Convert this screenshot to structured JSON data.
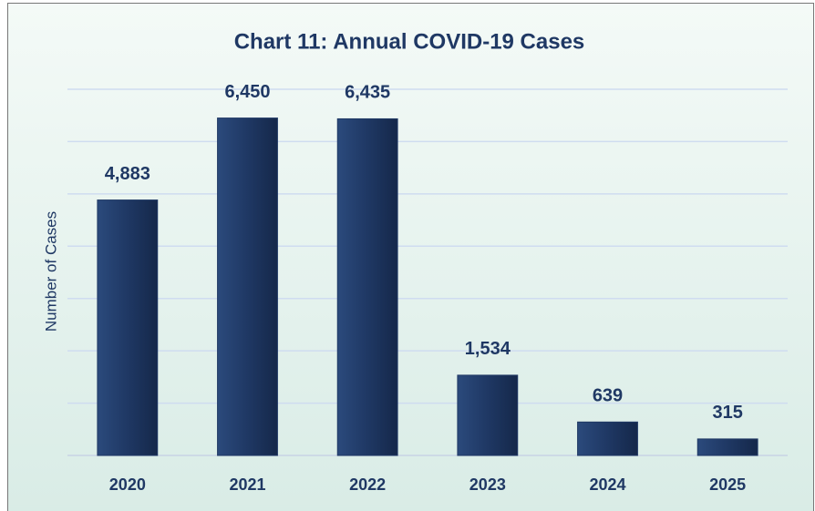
{
  "chart_data": {
    "type": "bar",
    "title": "Chart 11: Annual COVID-19 Cases",
    "y_label": "Number of Cases",
    "categories": [
      "2020",
      "2021",
      "2022",
      "2023",
      "2024",
      "2025"
    ],
    "values": [
      4883,
      6450,
      6435,
      1534,
      639,
      315
    ],
    "value_labels": [
      "4,883",
      "6,450",
      "6,435",
      "1,534",
      "639",
      "315"
    ],
    "color": "#1f3864",
    "ylim": [
      0,
      7000
    ],
    "yticks": [
      0,
      1000,
      2000,
      3000,
      4000,
      5000,
      6000,
      7000
    ],
    "grid": true
  }
}
